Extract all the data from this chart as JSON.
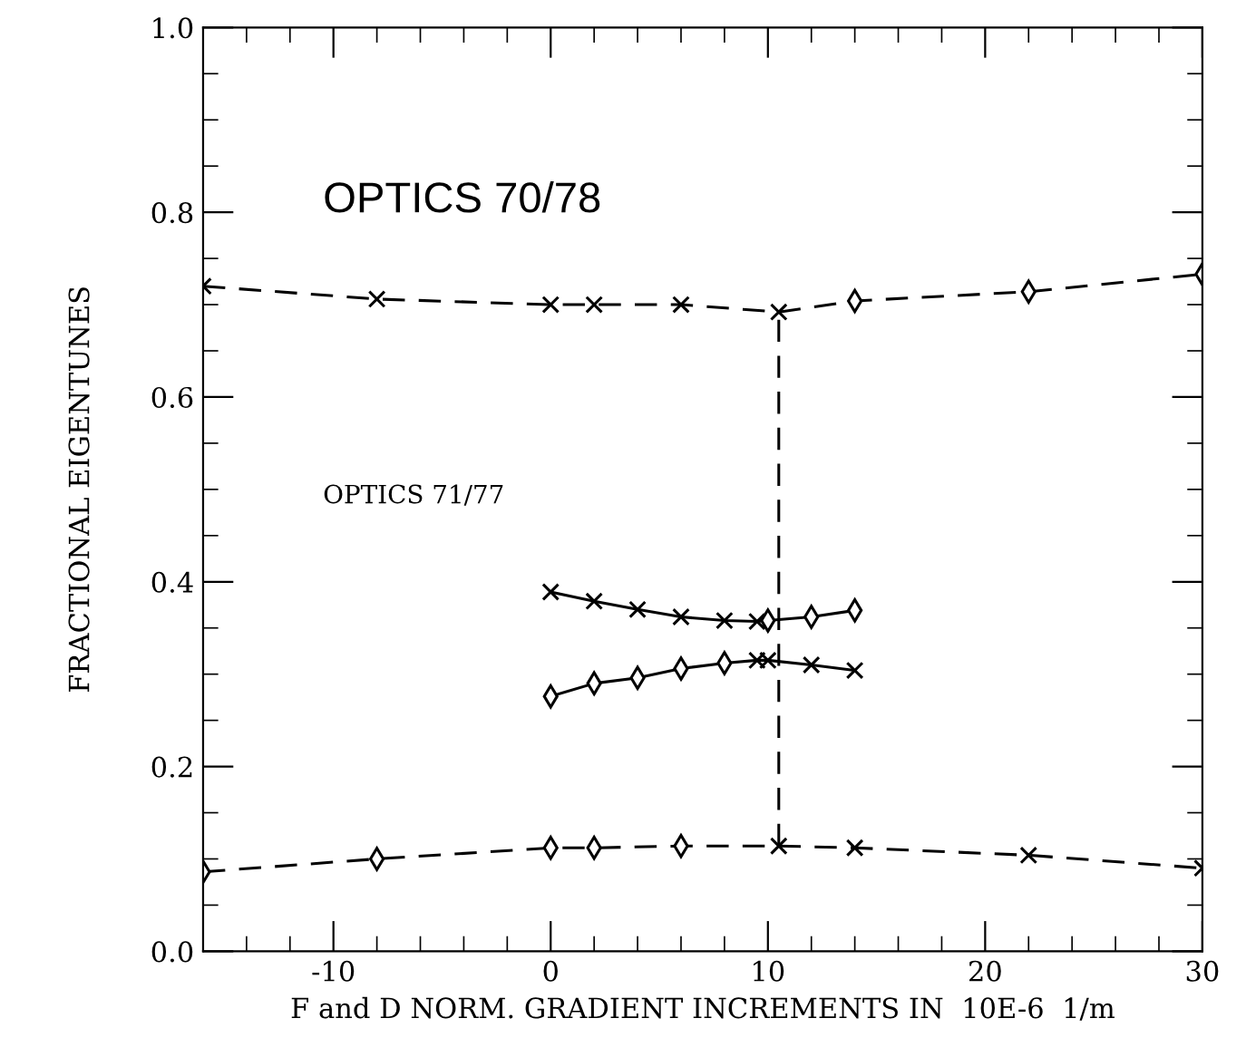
{
  "chart_data": {
    "type": "line",
    "xlabel": "F and D NORM. GRADIENT INCREMENTS IN  10E-6  1/m",
    "ylabel": "FRACTIONAL EIGENTUNES",
    "annotations": [
      "OPTICS 70/78",
      "OPTICS 71/77"
    ],
    "xlim": [
      -16,
      30
    ],
    "xticks": [
      -10,
      0,
      10,
      20,
      30
    ],
    "ylim": [
      0,
      1
    ],
    "yticks": [
      {
        "value": 0,
        "label": "0.0"
      },
      {
        "value": 0.2,
        "label": "0.2"
      },
      {
        "value": 0.4,
        "label": "0.4"
      },
      {
        "value": 0.6,
        "label": "0.6"
      },
      {
        "value": 0.8,
        "label": "0.8"
      },
      {
        "value": 1,
        "label": "1.0"
      }
    ],
    "grid": false,
    "legend": false,
    "series": [
      {
        "color": "#000000",
        "line_style": "dashed",
        "marker": "none",
        "x": [
          -16,
          -8,
          0,
          2,
          6,
          10.5,
          14,
          22,
          30
        ],
        "values": [
          0.72,
          0.706,
          0.7,
          0.7,
          0.7,
          0.692,
          0.704,
          0.714,
          0.733
        ]
      },
      {
        "type": "scatter",
        "color": "#000000",
        "marker": "cross",
        "x": [
          -16,
          -8,
          0,
          2,
          6,
          10.5
        ],
        "values": [
          0.72,
          0.706,
          0.7,
          0.7,
          0.7,
          0.692
        ]
      },
      {
        "type": "scatter",
        "color": "#000000",
        "marker": "diamond",
        "x": [
          14,
          22,
          30
        ],
        "values": [
          0.704,
          0.714,
          0.733
        ]
      },
      {
        "color": "#000000",
        "line_style": "dashed",
        "marker": "none",
        "x": [
          -16,
          -8,
          0,
          2,
          6,
          10.5,
          14,
          22,
          30
        ],
        "values": [
          0.086,
          0.1,
          0.112,
          0.112,
          0.114,
          0.114,
          0.112,
          0.104,
          0.09
        ]
      },
      {
        "type": "scatter",
        "color": "#000000",
        "marker": "diamond",
        "x": [
          -16,
          -8,
          0,
          2,
          6
        ],
        "values": [
          0.086,
          0.1,
          0.112,
          0.112,
          0.114
        ]
      },
      {
        "type": "scatter",
        "color": "#000000",
        "marker": "cross",
        "x": [
          10.5,
          14,
          22,
          30
        ],
        "values": [
          0.114,
          0.112,
          0.104,
          0.09
        ]
      },
      {
        "color": "#000000",
        "line_style": "solid",
        "marker": "none",
        "x": [
          0,
          2,
          4,
          6,
          8,
          9.5,
          10,
          12,
          14
        ],
        "values": [
          0.389,
          0.379,
          0.37,
          0.362,
          0.358,
          0.357,
          0.358,
          0.362,
          0.369
        ]
      },
      {
        "type": "scatter",
        "color": "#000000",
        "marker": "cross",
        "x": [
          0,
          2,
          4,
          6,
          8,
          9.5
        ],
        "values": [
          0.389,
          0.379,
          0.37,
          0.362,
          0.358,
          0.357
        ]
      },
      {
        "type": "scatter",
        "color": "#000000",
        "marker": "diamond",
        "x": [
          10,
          12,
          14
        ],
        "values": [
          0.358,
          0.362,
          0.369
        ]
      },
      {
        "color": "#000000",
        "line_style": "solid",
        "marker": "none",
        "x": [
          0,
          2,
          4,
          6,
          8,
          9.5,
          10,
          12,
          14
        ],
        "values": [
          0.276,
          0.29,
          0.296,
          0.306,
          0.312,
          0.315,
          0.315,
          0.31,
          0.304
        ]
      },
      {
        "type": "scatter",
        "color": "#000000",
        "marker": "diamond",
        "x": [
          0,
          2,
          4,
          6,
          8
        ],
        "values": [
          0.276,
          0.29,
          0.296,
          0.306,
          0.312
        ]
      },
      {
        "type": "scatter",
        "color": "#000000",
        "marker": "cross",
        "x": [
          9.5,
          10,
          12,
          14
        ],
        "values": [
          0.315,
          0.315,
          0.31,
          0.304
        ]
      },
      {
        "color": "#000000",
        "line_style": "dashed",
        "marker": "none",
        "x": [
          10.5,
          10.5
        ],
        "values": [
          0.114,
          0.692
        ]
      }
    ]
  }
}
